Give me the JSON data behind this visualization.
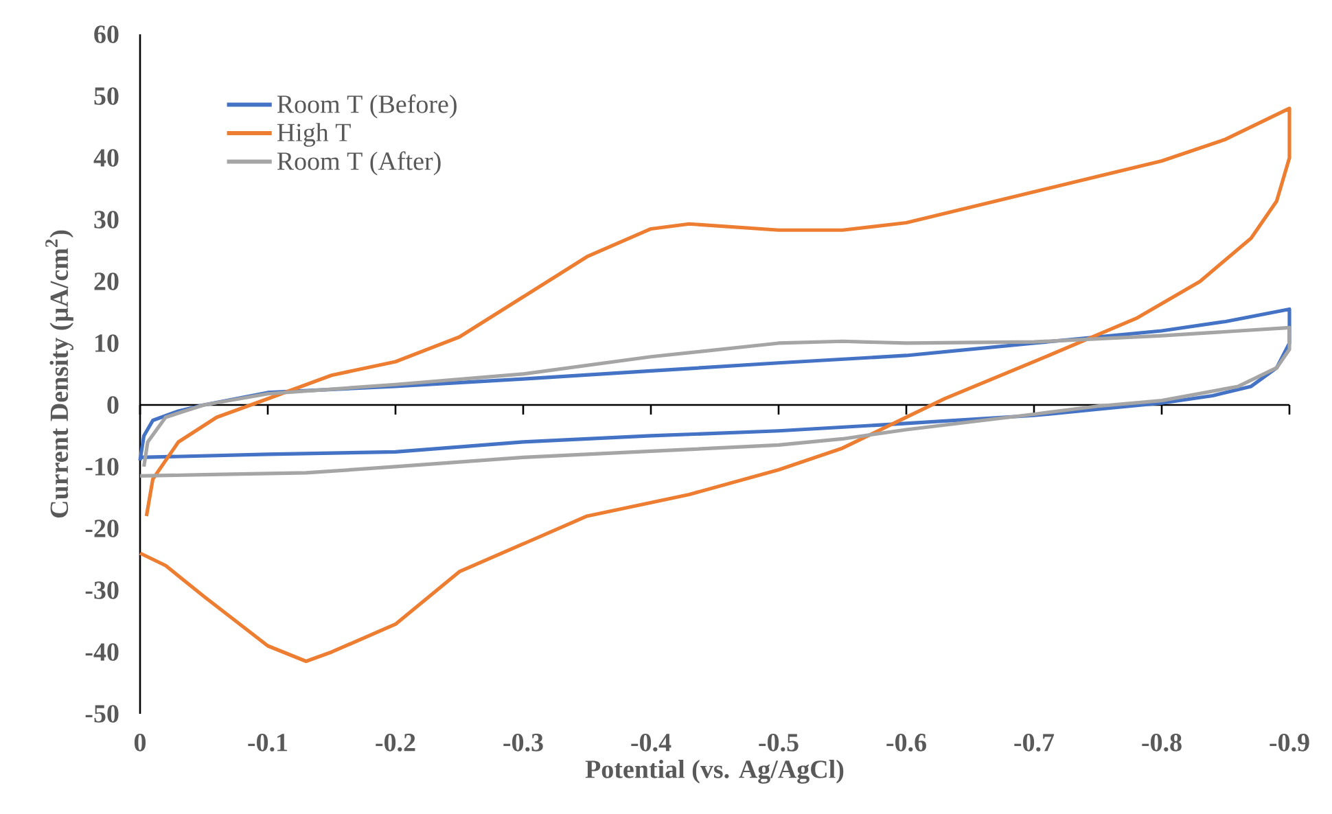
{
  "chart_data": {
    "type": "line",
    "xlabel": "Potential (vs. Ag/AgCl)",
    "ylabel": "Current Density (µA/cm$^{2}$)",
    "xlim": [
      0,
      -0.9
    ],
    "ylim": [
      -50,
      60
    ],
    "xticks": [
      0,
      -0.1,
      -0.2,
      -0.3,
      -0.4,
      -0.5,
      -0.6,
      -0.7,
      -0.8,
      -0.9
    ],
    "yticks": [
      -50,
      -40,
      -30,
      -20,
      -10,
      0,
      10,
      20,
      30,
      40,
      50,
      60
    ],
    "legend": "top left",
    "marker": "none",
    "line_style": "solid",
    "series": [
      {
        "name": "Room T (Before)",
        "color": "#4472c4",
        "x": [
          0,
          -0.003,
          -0.01,
          -0.03,
          -0.05,
          -0.1,
          -0.2,
          -0.3,
          -0.4,
          -0.5,
          -0.6,
          -0.7,
          -0.8,
          -0.85,
          -0.9,
          -0.9,
          -0.89,
          -0.87,
          -0.84,
          -0.8,
          -0.75,
          -0.7,
          -0.6,
          -0.5,
          -0.4,
          -0.3,
          -0.2,
          -0.1,
          0
        ],
        "values": [
          -9,
          -5,
          -2.5,
          -1,
          0,
          2,
          3,
          4.2,
          5.5,
          6.8,
          8,
          10,
          12,
          13.5,
          15.5,
          10,
          6,
          3,
          1.5,
          0.3,
          -0.7,
          -1.7,
          -3,
          -4.2,
          -5,
          -6,
          -7.6,
          -8,
          -8.5
        ]
      },
      {
        "name": "High T",
        "color": "#ed7d31",
        "x": [
          -0.005,
          -0.01,
          -0.03,
          -0.06,
          -0.1,
          -0.15,
          -0.2,
          -0.25,
          -0.3,
          -0.35,
          -0.4,
          -0.43,
          -0.5,
          -0.55,
          -0.6,
          -0.7,
          -0.8,
          -0.85,
          -0.9,
          -0.9,
          -0.89,
          -0.87,
          -0.83,
          -0.78,
          -0.7,
          -0.63,
          -0.6,
          -0.55,
          -0.5,
          -0.43,
          -0.35,
          -0.3,
          -0.25,
          -0.2,
          -0.15,
          -0.13,
          -0.1,
          -0.05,
          -0.02,
          0
        ],
        "values": [
          -18,
          -12,
          -6,
          -2,
          1,
          4.8,
          7,
          11,
          17.5,
          24,
          28.5,
          29.3,
          28.3,
          28.3,
          29.5,
          34.5,
          39.5,
          43,
          48,
          40,
          33,
          27,
          20,
          14,
          7,
          1,
          -2,
          -7,
          -10.5,
          -14.5,
          -18,
          -22.5,
          -27,
          -35.5,
          -40,
          -41.5,
          -39,
          -31,
          -26,
          -24
        ]
      },
      {
        "name": "Room T (After)",
        "color": "#a5a5a5",
        "x": [
          -0.003,
          -0.006,
          -0.02,
          -0.05,
          -0.1,
          -0.2,
          -0.3,
          -0.4,
          -0.5,
          -0.55,
          -0.6,
          -0.7,
          -0.75,
          -0.8,
          -0.9,
          -0.9,
          -0.89,
          -0.86,
          -0.8,
          -0.75,
          -0.7,
          -0.6,
          -0.55,
          -0.5,
          -0.4,
          -0.3,
          -0.2,
          -0.13,
          -0.05,
          0
        ],
        "values": [
          -10,
          -6,
          -2,
          0,
          1.8,
          3.3,
          5,
          7.8,
          10,
          10.3,
          10,
          10.2,
          10.7,
          11.2,
          12.5,
          9,
          6,
          3,
          0.7,
          -0.2,
          -1.5,
          -4,
          -5.5,
          -6.5,
          -7.5,
          -8.5,
          -10,
          -11,
          -11.3,
          -11.5
        ]
      }
    ]
  }
}
